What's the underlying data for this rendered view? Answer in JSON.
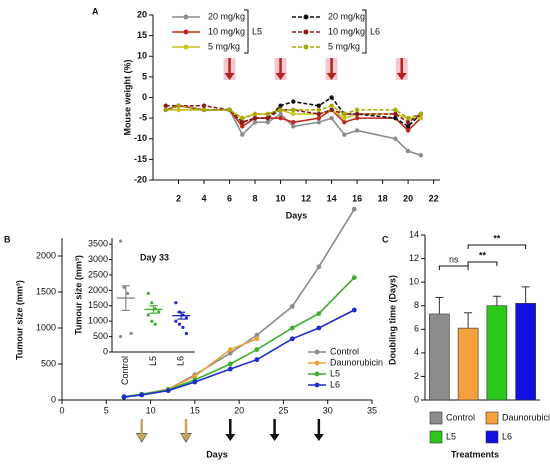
{
  "chart_data": [
    {
      "type": "line",
      "panel": "A",
      "ylabel": "Mouse weight (%)",
      "xlabel": "Days",
      "xlim": [
        0,
        22.5
      ],
      "xticks": [
        2,
        4,
        6,
        8,
        10,
        12,
        14,
        16,
        18,
        20,
        22
      ],
      "ylim": [
        -20,
        20
      ],
      "yticks": [
        20,
        15,
        10,
        5,
        0,
        -5,
        -10,
        -15,
        -20
      ],
      "x": [
        1,
        2,
        4,
        6,
        7,
        8,
        9,
        10,
        11,
        13,
        14,
        15,
        16,
        19,
        20,
        21
      ],
      "treatment_days": [
        6,
        10,
        14,
        19.5
      ],
      "arrow_color": "#b22222",
      "legend_groups": [
        {
          "label": "L5",
          "series": [
            0,
            1,
            2
          ]
        },
        {
          "label": "L6",
          "series": [
            3,
            4,
            5
          ]
        }
      ],
      "series": [
        {
          "name": "20 mg/kg",
          "color": "#8c8c8c",
          "dash": false,
          "values": [
            -3,
            -3,
            -3,
            -3,
            -9,
            -6,
            -6,
            -4,
            -7,
            -6,
            -5,
            -9,
            -8,
            -10,
            -13,
            -14
          ]
        },
        {
          "name": "10 mg/kg",
          "color": "#c0281c",
          "dash": false,
          "values": [
            -3,
            -2,
            -3,
            -3,
            -7,
            -5,
            -5,
            -5,
            -6,
            -5,
            -3,
            -6,
            -5,
            -5,
            -8,
            -5
          ]
        },
        {
          "name": "5 mg/kg",
          "color": "#c4c41c",
          "dash": false,
          "values": [
            -3,
            -3,
            -3,
            -3,
            -5,
            -4,
            -4,
            -3,
            -4,
            -4,
            -3,
            -5,
            -4,
            -4,
            -5,
            -5
          ]
        },
        {
          "name": "20 mg/kg",
          "color": "#111111",
          "dash": true,
          "values": [
            -3,
            -2,
            -3,
            -3,
            -6,
            -5,
            -5,
            -2,
            -1,
            -2,
            0,
            -4,
            -4,
            -5,
            -7,
            -4
          ]
        },
        {
          "name": "10 mg/kg",
          "color": "#8b1a1a",
          "dash": true,
          "values": [
            -2,
            -2,
            -2,
            -3,
            -6,
            -5,
            -5,
            -3,
            -3,
            -4,
            -3,
            -4,
            -4,
            -4,
            -6,
            -4
          ]
        },
        {
          "name": "5 mg/kg",
          "color": "#a8a800",
          "dash": true,
          "values": [
            -3,
            -2,
            -3,
            -3,
            -5,
            -4,
            -4,
            -3,
            -3,
            -3,
            -2,
            -4,
            -3,
            -3,
            -5,
            -4
          ]
        }
      ]
    },
    {
      "type": "line",
      "panel": "B",
      "ylabel": "Tumour size (mm³)",
      "xlabel": "Days",
      "xlim": [
        0,
        35
      ],
      "xticks": [
        0,
        5,
        10,
        15,
        20,
        25,
        30,
        35
      ],
      "ylim": [
        0,
        2250
      ],
      "yticks": [
        0,
        500,
        1000,
        1500,
        2000
      ],
      "x": [
        7,
        9,
        12,
        15,
        19,
        22,
        26,
        29,
        33
      ],
      "treatment_days": [
        9,
        14,
        19,
        24,
        29
      ],
      "arrow_colors": [
        "#c8a45a",
        "#c8a45a",
        "#111111",
        "#111111",
        "#111111"
      ],
      "series": [
        {
          "name": "Control",
          "color": "#8c8c8c",
          "values": [
            50,
            80,
            150,
            350,
            650,
            900,
            1300,
            1850,
            2650
          ]
        },
        {
          "name": "Daunorubicin",
          "color": "#e8a33c",
          "values": [
            40,
            80,
            150,
            330,
            700,
            850,
            null,
            null,
            null
          ]
        },
        {
          "name": "L5",
          "color": "#3cb02c",
          "values": [
            40,
            80,
            140,
            280,
            500,
            700,
            1000,
            1200,
            1700
          ]
        },
        {
          "name": "L6",
          "color": "#1c2cc8",
          "values": [
            40,
            70,
            130,
            250,
            430,
            560,
            850,
            1000,
            1250
          ]
        }
      ]
    },
    {
      "type": "dot",
      "title": "Day 33",
      "ylabel": "Tumour size (mm³)",
      "ylim": [
        0,
        3700
      ],
      "yticks": [
        0,
        500,
        1000,
        1500,
        2000,
        2500,
        3000,
        3500
      ],
      "categories": [
        "Control",
        "L5",
        "L6"
      ],
      "colors": [
        "#8c8c8c",
        "#3cb02c",
        "#1c2cc8"
      ],
      "values": [
        1750,
        1380,
        1180
      ],
      "errors": [
        400,
        120,
        110
      ],
      "points": [
        [
          3600,
          2100,
          1900,
          600,
          500
        ],
        [
          1900,
          1600,
          1400,
          1300,
          1200,
          1000,
          900
        ],
        [
          1600,
          1300,
          1200,
          1100,
          1000,
          900,
          800,
          600
        ]
      ]
    },
    {
      "type": "bar",
      "panel": "C",
      "ylabel": "Doubling time (Days)",
      "xlabel": "Treatments",
      "ylim": [
        0,
        14
      ],
      "yticks": [
        0,
        2,
        4,
        6,
        8,
        10,
        12,
        14
      ],
      "categories": [
        "Control",
        "Daunorubicin",
        "L5",
        "L6"
      ],
      "colors": [
        "#8c8c8c",
        "#f4a03c",
        "#2cc81c",
        "#1010e0"
      ],
      "values": [
        7.3,
        6.1,
        8.0,
        8.2
      ],
      "errors": [
        1.4,
        1.3,
        0.8,
        1.4
      ],
      "annotations": [
        {
          "label": "ns",
          "from": 0,
          "to": 1
        },
        {
          "label": "**",
          "from": 1,
          "to": 2
        },
        {
          "label": "**",
          "from": 1,
          "to": 3
        }
      ]
    }
  ]
}
